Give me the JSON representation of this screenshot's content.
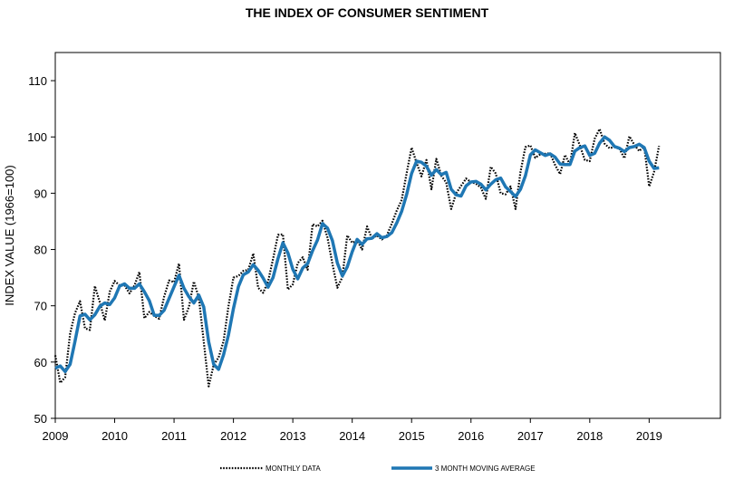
{
  "chart_data": {
    "type": "line",
    "title": "THE INDEX OF CONSUMER SENTIMENT",
    "xlabel": "",
    "ylabel": "INDEX VALUE (1966=100)",
    "ylim": [
      50,
      115
    ],
    "xlim": [
      2009.0,
      2020.2
    ],
    "yticks": [
      50,
      60,
      70,
      80,
      90,
      100,
      110
    ],
    "xticks": [
      "2009",
      "2010",
      "2011",
      "2012",
      "2013",
      "2014",
      "2015",
      "2016",
      "2017",
      "2018",
      "2019"
    ],
    "grid": false,
    "legend_position": "bottom",
    "series": [
      {
        "name": "MONTHLY DATA",
        "style": "dotted",
        "color": "#000000",
        "start": "2009-01",
        "values": [
          61.2,
          56.3,
          57.3,
          65.1,
          68.7,
          70.8,
          66.0,
          65.7,
          73.5,
          70.6,
          67.4,
          72.5,
          74.4,
          73.6,
          73.6,
          72.2,
          73.6,
          76.0,
          67.8,
          68.9,
          68.2,
          67.7,
          71.6,
          74.5,
          74.2,
          77.5,
          67.5,
          69.8,
          74.3,
          71.5,
          63.7,
          55.7,
          59.5,
          60.8,
          63.7,
          69.9,
          75.0,
          75.3,
          76.2,
          76.4,
          79.3,
          73.2,
          72.3,
          74.3,
          78.3,
          82.6,
          82.7,
          72.9,
          73.8,
          77.6,
          78.6,
          76.4,
          84.5,
          84.1,
          85.1,
          82.1,
          77.5,
          73.2,
          75.1,
          82.5,
          81.2,
          81.6,
          80.0,
          84.1,
          81.9,
          82.5,
          81.8,
          82.5,
          84.6,
          86.9,
          88.8,
          93.6,
          98.1,
          95.4,
          93.0,
          95.9,
          90.7,
          96.1,
          93.1,
          91.9,
          87.2,
          90.0,
          91.3,
          92.6,
          92.0,
          91.7,
          91.0,
          89.0,
          94.7,
          93.5,
          90.0,
          89.8,
          91.2,
          87.2,
          93.8,
          98.2,
          98.5,
          96.3,
          96.9,
          97.0,
          97.1,
          95.0,
          93.4,
          96.8,
          95.1,
          100.7,
          98.5,
          95.9,
          95.7,
          99.7,
          101.4,
          98.8,
          98.0,
          98.2,
          97.9,
          96.2,
          100.1,
          98.6,
          97.5,
          98.3,
          91.2,
          93.8,
          98.4
        ]
      },
      {
        "name": "3 MONTH MOVING AVERAGE",
        "style": "solid",
        "color": "#1f77b4",
        "start": "2009-01",
        "values": [
          58.9,
          59.3,
          58.3,
          59.6,
          63.7,
          68.2,
          68.5,
          67.5,
          68.4,
          69.9,
          70.5,
          70.2,
          71.4,
          73.5,
          73.9,
          73.1,
          73.1,
          73.9,
          72.5,
          70.9,
          68.3,
          68.3,
          69.2,
          71.3,
          73.4,
          75.4,
          73.1,
          71.6,
          70.5,
          71.9,
          69.8,
          63.6,
          59.6,
          58.7,
          61.3,
          64.8,
          69.5,
          73.4,
          75.5,
          76.0,
          77.3,
          76.3,
          74.9,
          73.3,
          75.0,
          78.4,
          81.2,
          79.4,
          76.5,
          74.8,
          76.7,
          77.5,
          79.8,
          81.7,
          84.6,
          83.8,
          81.6,
          77.6,
          75.3,
          76.9,
          79.6,
          81.8,
          80.9,
          81.9,
          82.0,
          82.8,
          82.1,
          82.3,
          83.0,
          84.7,
          86.8,
          89.8,
          93.5,
          95.7,
          95.5,
          94.8,
          93.2,
          94.2,
          93.3,
          93.7,
          90.7,
          89.7,
          89.5,
          91.3,
          92.0,
          92.1,
          91.6,
          90.6,
          91.6,
          92.4,
          92.7,
          91.1,
          90.3,
          89.4,
          90.7,
          93.1,
          96.8,
          97.7,
          97.2,
          96.7,
          97.0,
          96.4,
          95.2,
          95.1,
          95.1,
          97.5,
          98.1,
          98.4,
          96.7,
          97.1,
          98.9,
          100.0,
          99.4,
          98.3,
          98.0,
          97.4,
          98.1,
          98.3,
          98.7,
          98.1,
          95.7,
          94.4,
          94.5
        ]
      }
    ]
  }
}
